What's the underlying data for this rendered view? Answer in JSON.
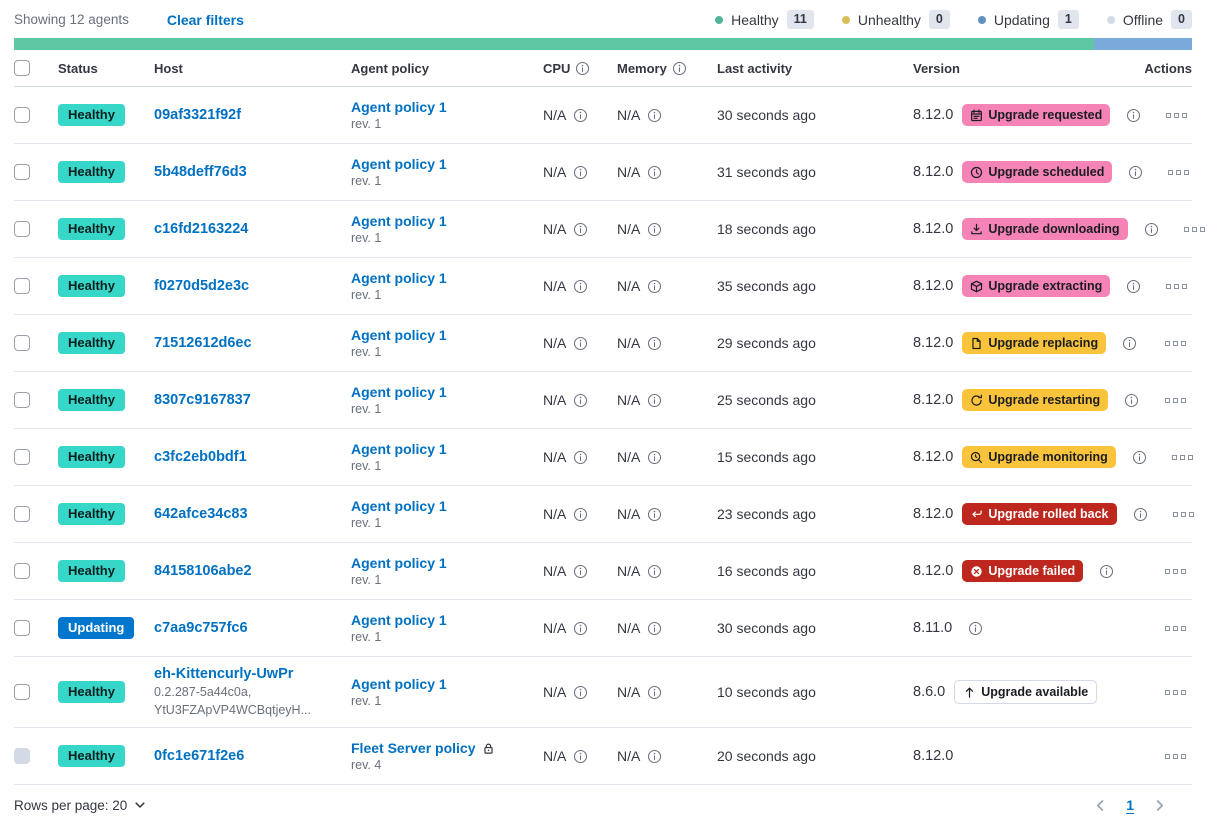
{
  "toolbar": {
    "showing": "Showing 12 agents",
    "clear_filters": "Clear filters"
  },
  "legend": [
    {
      "label": "Healthy",
      "count": "11",
      "color": "#54b399"
    },
    {
      "label": "Unhealthy",
      "count": "0",
      "color": "#d6bf57"
    },
    {
      "label": "Updating",
      "count": "1",
      "color": "#6092c0"
    },
    {
      "label": "Offline",
      "count": "0",
      "color": "#d3dae6"
    }
  ],
  "health_bar": [
    {
      "color": "#5fc7a3",
      "weight": 11
    },
    {
      "color": "#79aad9",
      "weight": 1
    }
  ],
  "colors": {
    "status": {
      "healthy": "#36d6c9",
      "updating": "#0077cc"
    },
    "badge": {
      "accent": "#f583b6",
      "warning": "#f9c43c",
      "danger": "#bd271e",
      "hollow": "#ffffff"
    }
  },
  "table": {
    "columns": [
      {
        "label": "Status"
      },
      {
        "label": "Host"
      },
      {
        "label": "Agent policy"
      },
      {
        "label": "CPU",
        "info": true
      },
      {
        "label": "Memory",
        "info": true
      },
      {
        "label": "Last activity"
      },
      {
        "label": "Version"
      },
      {
        "label": "Actions"
      }
    ],
    "rows": [
      {
        "status": {
          "label": "Healthy",
          "kind": "healthy"
        },
        "host": {
          "name": "09af3321f92f",
          "sublines": []
        },
        "policy": {
          "name": "Agent policy 1",
          "rev": "rev. 1",
          "locked": false
        },
        "cpu": "N/A",
        "memory": "N/A",
        "last_activity": "30 seconds ago",
        "version": "8.12.0",
        "upgrade": {
          "label": "Upgrade requested",
          "icon": "calendar",
          "kind": "accent"
        },
        "version_info": true,
        "checkbox_disabled": false
      },
      {
        "status": {
          "label": "Healthy",
          "kind": "healthy"
        },
        "host": {
          "name": "5b48deff76d3",
          "sublines": []
        },
        "policy": {
          "name": "Agent policy 1",
          "rev": "rev. 1",
          "locked": false
        },
        "cpu": "N/A",
        "memory": "N/A",
        "last_activity": "31 seconds ago",
        "version": "8.12.0",
        "upgrade": {
          "label": "Upgrade scheduled",
          "icon": "clock",
          "kind": "accent"
        },
        "version_info": true,
        "checkbox_disabled": false
      },
      {
        "status": {
          "label": "Healthy",
          "kind": "healthy"
        },
        "host": {
          "name": "c16fd2163224",
          "sublines": []
        },
        "policy": {
          "name": "Agent policy 1",
          "rev": "rev. 1",
          "locked": false
        },
        "cpu": "N/A",
        "memory": "N/A",
        "last_activity": "18 seconds ago",
        "version": "8.12.0",
        "upgrade": {
          "label": "Upgrade downloading",
          "icon": "download",
          "kind": "accent"
        },
        "version_info": true,
        "checkbox_disabled": false
      },
      {
        "status": {
          "label": "Healthy",
          "kind": "healthy"
        },
        "host": {
          "name": "f0270d5d2e3c",
          "sublines": []
        },
        "policy": {
          "name": "Agent policy 1",
          "rev": "rev. 1",
          "locked": false
        },
        "cpu": "N/A",
        "memory": "N/A",
        "last_activity": "35 seconds ago",
        "version": "8.12.0",
        "upgrade": {
          "label": "Upgrade extracting",
          "icon": "package",
          "kind": "accent"
        },
        "version_info": true,
        "checkbox_disabled": false
      },
      {
        "status": {
          "label": "Healthy",
          "kind": "healthy"
        },
        "host": {
          "name": "71512612d6ec",
          "sublines": []
        },
        "policy": {
          "name": "Agent policy 1",
          "rev": "rev. 1",
          "locked": false
        },
        "cpu": "N/A",
        "memory": "N/A",
        "last_activity": "29 seconds ago",
        "version": "8.12.0",
        "upgrade": {
          "label": "Upgrade replacing",
          "icon": "document",
          "kind": "warning"
        },
        "version_info": true,
        "checkbox_disabled": false
      },
      {
        "status": {
          "label": "Healthy",
          "kind": "healthy"
        },
        "host": {
          "name": "8307c9167837",
          "sublines": []
        },
        "policy": {
          "name": "Agent policy 1",
          "rev": "rev. 1",
          "locked": false
        },
        "cpu": "N/A",
        "memory": "N/A",
        "last_activity": "25 seconds ago",
        "version": "8.12.0",
        "upgrade": {
          "label": "Upgrade restarting",
          "icon": "refresh",
          "kind": "warning"
        },
        "version_info": true,
        "checkbox_disabled": false
      },
      {
        "status": {
          "label": "Healthy",
          "kind": "healthy"
        },
        "host": {
          "name": "c3fc2eb0bdf1",
          "sublines": []
        },
        "policy": {
          "name": "Agent policy 1",
          "rev": "rev. 1",
          "locked": false
        },
        "cpu": "N/A",
        "memory": "N/A",
        "last_activity": "15 seconds ago",
        "version": "8.12.0",
        "upgrade": {
          "label": "Upgrade monitoring",
          "icon": "inspect",
          "kind": "warning"
        },
        "version_info": true,
        "checkbox_disabled": false
      },
      {
        "status": {
          "label": "Healthy",
          "kind": "healthy"
        },
        "host": {
          "name": "642afce34c83",
          "sublines": []
        },
        "policy": {
          "name": "Agent policy 1",
          "rev": "rev. 1",
          "locked": false
        },
        "cpu": "N/A",
        "memory": "N/A",
        "last_activity": "23 seconds ago",
        "version": "8.12.0",
        "upgrade": {
          "label": "Upgrade rolled back",
          "icon": "return",
          "kind": "danger"
        },
        "version_info": true,
        "checkbox_disabled": false
      },
      {
        "status": {
          "label": "Healthy",
          "kind": "healthy"
        },
        "host": {
          "name": "84158106abe2",
          "sublines": []
        },
        "policy": {
          "name": "Agent policy 1",
          "rev": "rev. 1",
          "locked": false
        },
        "cpu": "N/A",
        "memory": "N/A",
        "last_activity": "16 seconds ago",
        "version": "8.12.0",
        "upgrade": {
          "label": "Upgrade failed",
          "icon": "cross-circle",
          "kind": "danger"
        },
        "version_info": true,
        "checkbox_disabled": false
      },
      {
        "status": {
          "label": "Updating",
          "kind": "updating"
        },
        "host": {
          "name": "c7aa9c757fc6",
          "sublines": []
        },
        "policy": {
          "name": "Agent policy 1",
          "rev": "rev. 1",
          "locked": false
        },
        "cpu": "N/A",
        "memory": "N/A",
        "last_activity": "30 seconds ago",
        "version": "8.11.0",
        "upgrade": null,
        "version_info": true,
        "checkbox_disabled": false
      },
      {
        "status": {
          "label": "Healthy",
          "kind": "healthy"
        },
        "host": {
          "name": "eh-Kittencurly-UwPr",
          "sublines": [
            "0.2.287-5a44c0a,",
            "YtU3FZApVP4WCBqtjeyH..."
          ]
        },
        "policy": {
          "name": "Agent policy 1",
          "rev": "rev. 1",
          "locked": false
        },
        "cpu": "N/A",
        "memory": "N/A",
        "last_activity": "10 seconds ago",
        "version": "8.6.0",
        "upgrade": {
          "label": "Upgrade available",
          "icon": "arrow-up",
          "kind": "hollow"
        },
        "version_info": false,
        "checkbox_disabled": false
      },
      {
        "status": {
          "label": "Healthy",
          "kind": "healthy"
        },
        "host": {
          "name": "0fc1e671f2e6",
          "sublines": []
        },
        "policy": {
          "name": "Fleet Server policy",
          "rev": "rev. 4",
          "locked": true
        },
        "cpu": "N/A",
        "memory": "N/A",
        "last_activity": "20 seconds ago",
        "version": "8.12.0",
        "upgrade": null,
        "version_info": false,
        "checkbox_disabled": true
      }
    ]
  },
  "footer": {
    "rows_per_page": "Rows per page: 20",
    "page": "1"
  }
}
